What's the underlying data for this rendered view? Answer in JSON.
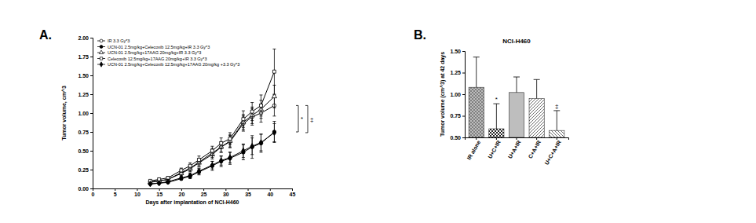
{
  "chart_data": [
    {
      "type": "line",
      "panel_label": "A.",
      "x_label": "Days after implantation of NCI-H460",
      "y_label": "Tumor volume, cm^3",
      "x": [
        13,
        15,
        17,
        20,
        22,
        24,
        27,
        29,
        31,
        34,
        36,
        38,
        41
      ],
      "xlim": [
        0,
        45
      ],
      "xticks": [
        0,
        5,
        10,
        15,
        20,
        25,
        30,
        35,
        40,
        45
      ],
      "ylim": [
        0,
        2
      ],
      "yticks": [
        {
          "value": 0,
          "label": "0.00"
        },
        {
          "value": 0.25,
          "label": "0.25"
        },
        {
          "value": 0.5,
          "label": "0.50"
        },
        {
          "value": 0.75,
          "label": "0.75"
        },
        {
          "value": 1,
          "label": "1.00"
        },
        {
          "value": 1.25,
          "label": "1.25"
        },
        {
          "value": 1.5,
          "label": "1.50"
        },
        {
          "value": 1.75,
          "label": "1.75"
        },
        {
          "value": 2,
          "label": "2.00"
        }
      ],
      "legend": "upper left",
      "series": [
        {
          "name": "IR 3.3 Gy*3",
          "color": "#000000",
          "marker": "circle-open",
          "values": [
            0.09,
            0.1,
            0.12,
            0.21,
            0.27,
            0.35,
            0.47,
            0.55,
            0.62,
            0.86,
            0.95,
            1.0,
            1.1
          ],
          "errors": [
            0.01,
            0.01,
            0.02,
            0.03,
            0.04,
            0.05,
            0.06,
            0.07,
            0.08,
            0.1,
            0.11,
            0.12,
            0.14
          ]
        },
        {
          "name": "UCN-01 2.5mg/kg+Celecoxib 12.5mg/kg+IR 3.3 Gy*3",
          "color": "#000000",
          "marker": "circle",
          "values": [
            0.06,
            0.07,
            0.08,
            0.13,
            0.16,
            0.22,
            0.3,
            0.36,
            0.4,
            0.48,
            0.55,
            0.6,
            0.75
          ],
          "errors": [
            0.01,
            0.01,
            0.01,
            0.02,
            0.03,
            0.04,
            0.06,
            0.07,
            0.08,
            0.1,
            0.15,
            0.12,
            0.14
          ]
        },
        {
          "name": "UCN-01 2.5mg/kg+17AAG 20mg/kg+IR 3.3 Gy*3",
          "color": "#000000",
          "marker": "triangle-open",
          "values": [
            0.08,
            0.1,
            0.12,
            0.2,
            0.26,
            0.34,
            0.45,
            0.55,
            0.63,
            0.88,
            0.97,
            1.05,
            1.22
          ],
          "errors": [
            0.01,
            0.01,
            0.02,
            0.03,
            0.04,
            0.05,
            0.06,
            0.07,
            0.08,
            0.1,
            0.11,
            0.12,
            0.15
          ]
        },
        {
          "name": "Celecoxib 12.5mg/kg+17AAG 20mg/kg+IR 3.3 Gy*3",
          "color": "#000000",
          "marker": "square-open",
          "values": [
            0.1,
            0.12,
            0.14,
            0.24,
            0.3,
            0.38,
            0.5,
            0.6,
            0.66,
            0.92,
            1.02,
            1.1,
            1.55
          ],
          "errors": [
            0.01,
            0.02,
            0.02,
            0.03,
            0.04,
            0.05,
            0.06,
            0.07,
            0.08,
            0.11,
            0.12,
            0.14,
            0.3
          ]
        },
        {
          "name": "UCN-01 2.5mg/kg+Celecoxib 12.5mg/kg+17AAG 20mg/kg +3.3 Gy*3",
          "color": "#000000",
          "marker": "diamond",
          "values": [
            0.06,
            0.07,
            0.09,
            0.14,
            0.17,
            0.23,
            0.31,
            0.37,
            0.41,
            0.5,
            0.56,
            0.61,
            0.74
          ],
          "errors": [
            0.01,
            0.01,
            0.01,
            0.02,
            0.03,
            0.04,
            0.05,
            0.06,
            0.07,
            0.09,
            0.11,
            0.11,
            0.12
          ]
        }
      ],
      "annotations": [
        "*",
        "‡"
      ]
    },
    {
      "type": "bar",
      "panel_label": "B.",
      "title": "NCI-H460",
      "y_label": "Tumor volume (cm^3) at 42 days",
      "categories": [
        "IR alone",
        "U+C+IR",
        "U+A+IR",
        "C+A+IR",
        "U+C+A+IR"
      ],
      "values": [
        1.08,
        0.6,
        1.02,
        0.95,
        0.58
      ],
      "errors": [
        0.35,
        0.29,
        0.18,
        0.22,
        0.23
      ],
      "ylim": [
        0.5,
        1.5
      ],
      "yticks": [
        {
          "value": 0.5,
          "label": "0.50"
        },
        {
          "value": 0.75,
          "label": "0.75"
        },
        {
          "value": 1,
          "label": "1.00"
        },
        {
          "value": 1.25,
          "label": "1.25"
        },
        {
          "value": 1.5,
          "label": "1.50"
        }
      ],
      "annotations": [
        null,
        "*",
        null,
        null,
        "‡"
      ]
    }
  ]
}
